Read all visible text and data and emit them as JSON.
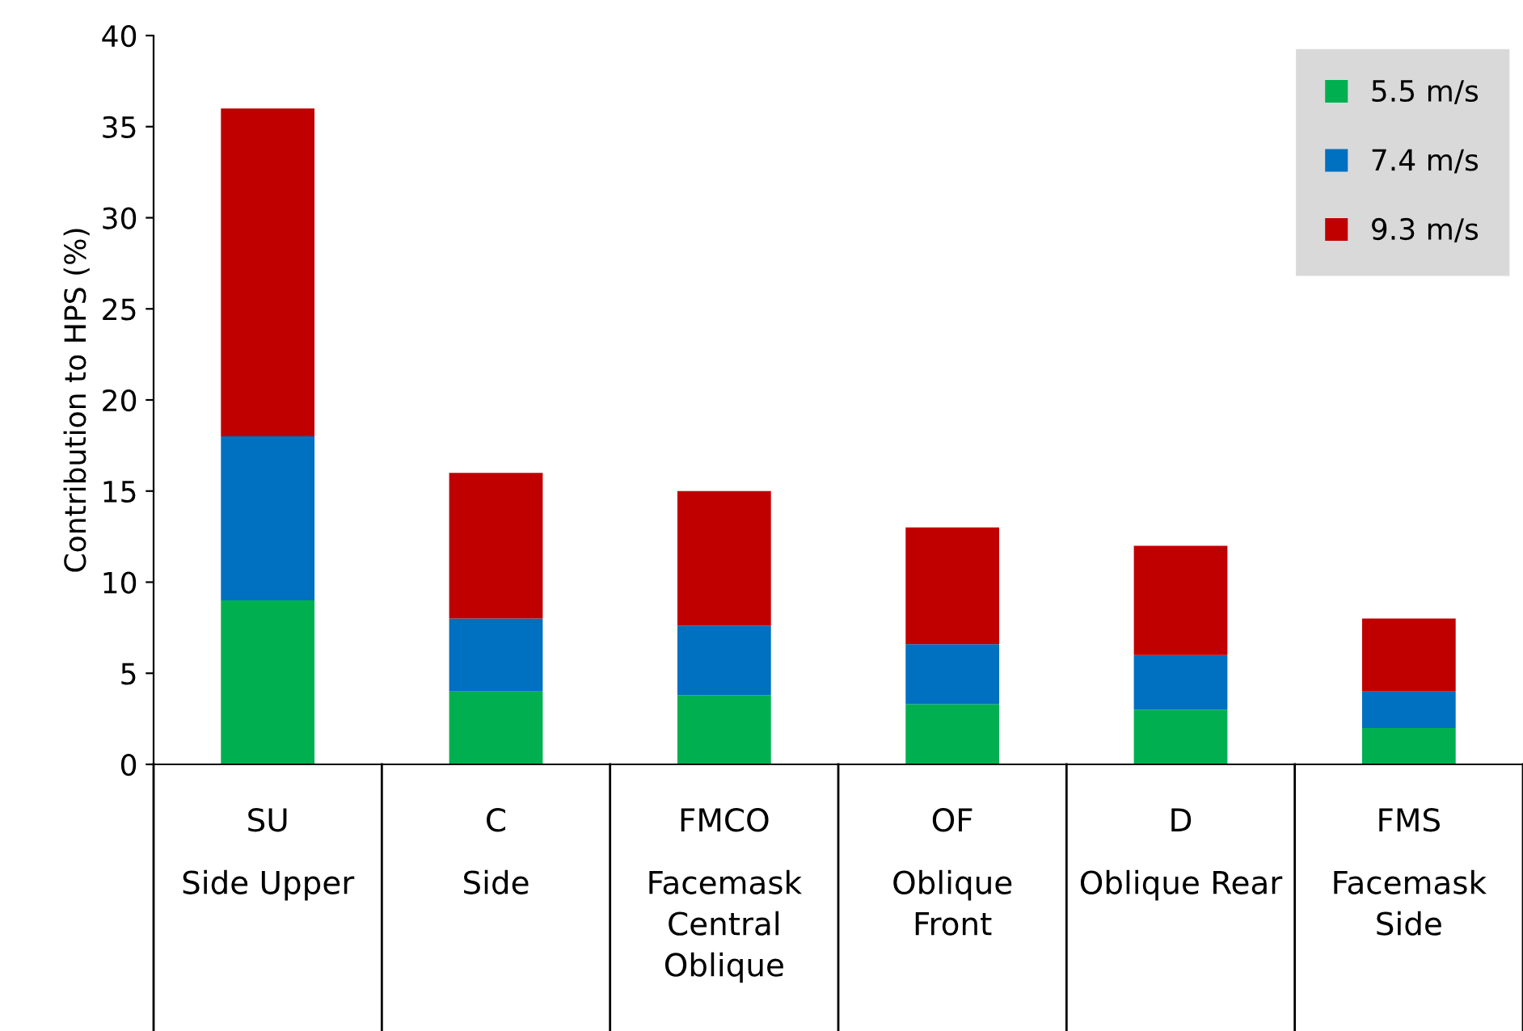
{
  "chart_data": {
    "type": "bar",
    "stacked": true,
    "ylabel": "Contribution to HPS (%)",
    "categories": [
      "SU\nSide Upper",
      "C\nSide",
      "FMCO\nFacemask\nCentral\nOblique",
      "OF\nOblique\nFront",
      "D\nOblique Rear",
      "FMS\nFacemask\nSide"
    ],
    "series": [
      {
        "name": "5.5 m/s",
        "color": "#00b050",
        "values": [
          9,
          4,
          3.8,
          3.3,
          3,
          2
        ]
      },
      {
        "name": "7.4 m/s",
        "color": "#0070c0",
        "values": [
          9,
          4,
          3.8,
          3.3,
          3,
          2
        ]
      },
      {
        "name": "9.3 m/s",
        "color": "#c00000",
        "values": [
          18,
          8,
          7.4,
          6.4,
          6,
          4
        ]
      }
    ],
    "ylim": [
      0,
      40
    ],
    "yticks": [
      0,
      5,
      10,
      15,
      20,
      25,
      30,
      35,
      40
    ],
    "grid": false,
    "legend": "top right"
  }
}
